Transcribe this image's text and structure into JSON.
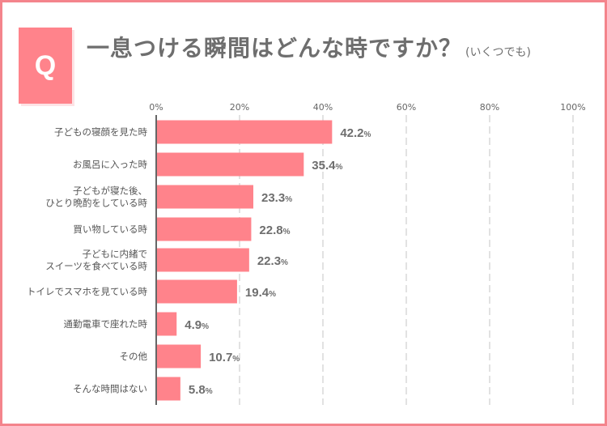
{
  "header": {
    "badge": "Q",
    "title": "一息つける瞬間はどんな時ですか？",
    "note": "(いくつでも)"
  },
  "chart_data": {
    "type": "bar",
    "orientation": "horizontal",
    "title": "一息つける瞬間はどんな時ですか？",
    "categories": [
      "子どもの寝顔を見た時",
      "お風呂に入った時",
      "子どもが寝た後、\nひとり晩酌をしている時",
      "買い物している時",
      "子どもに内緒で\nスイーツを食べている時",
      "トイレでスマホを見ている時",
      "通勤電車で座れた時",
      "その他",
      "そんな時間はない"
    ],
    "values": [
      42.2,
      35.4,
      23.3,
      22.8,
      22.3,
      19.4,
      4.9,
      10.7,
      5.8
    ],
    "unit": "%",
    "xlim": [
      0,
      100
    ],
    "ticks": [
      "0%",
      "20%",
      "40%",
      "60%",
      "80%",
      "100%"
    ],
    "grid": true,
    "bar_color": "#ff838b",
    "accent_color": "#f4848c"
  }
}
